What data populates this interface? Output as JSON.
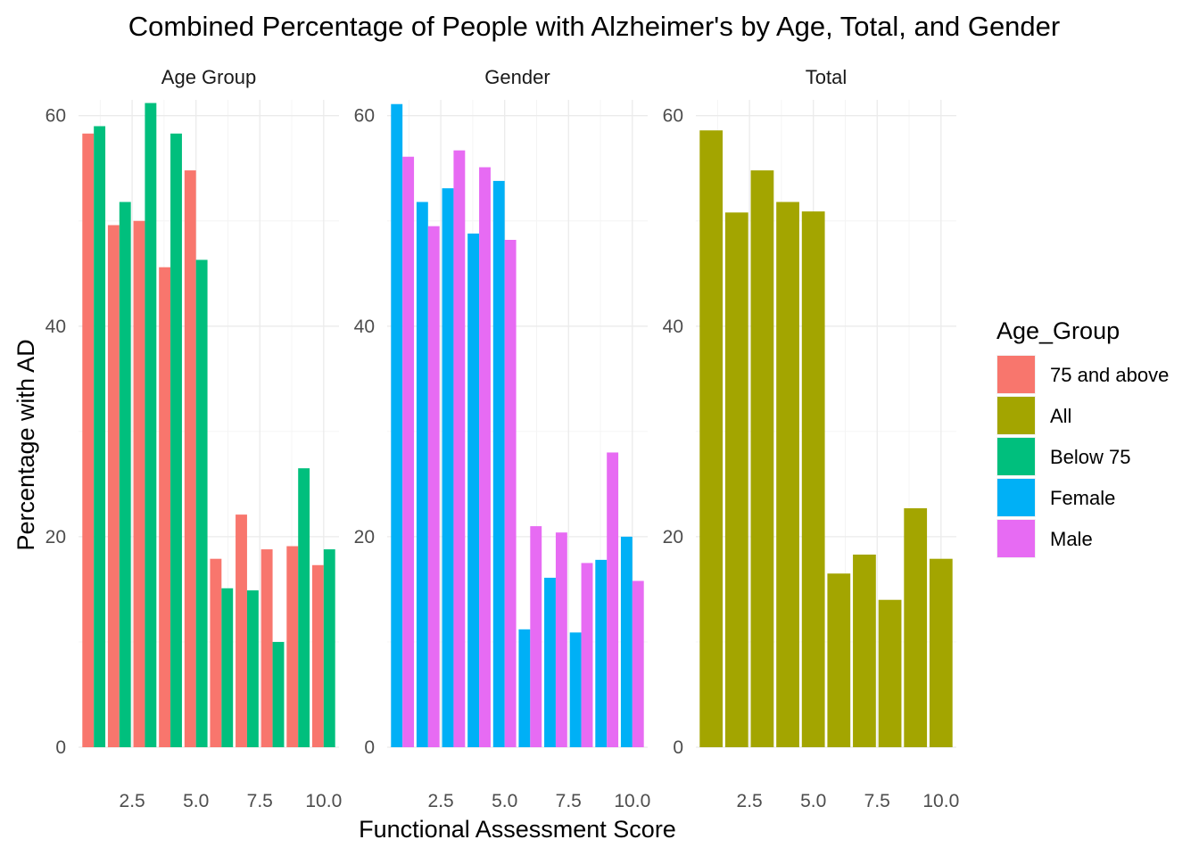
{
  "chart_data": {
    "type": "bar",
    "title": "Combined Percentage of People with Alzheimer's by Age, Total, and Gender",
    "xlabel": "Functional Assessment Score",
    "ylabel": "Percentage with AD",
    "x_ticks": [
      2.5,
      5.0,
      7.5,
      10.0
    ],
    "x_tick_labels": [
      "2.5",
      "5.0",
      "7.5",
      "10.0"
    ],
    "grid": true,
    "legend": {
      "title": "Age_Group",
      "position": "right",
      "entries": [
        {
          "name": "75 and above",
          "color": "#F8766D"
        },
        {
          "name": "All",
          "color": "#A3A500"
        },
        {
          "name": "Below 75",
          "color": "#00BF7D"
        },
        {
          "name": "Female",
          "color": "#00B0F6"
        },
        {
          "name": "Male",
          "color": "#E76BF3"
        }
      ]
    },
    "x": [
      1,
      2,
      3,
      4,
      5,
      6,
      7,
      8,
      9,
      10
    ],
    "panels": [
      {
        "strip": "Age Group",
        "ylim": [
          0,
          61.5
        ],
        "y_ticks": [
          0,
          20,
          40,
          60
        ],
        "y_tick_labels": [
          "0",
          "20",
          "40",
          "60"
        ],
        "series": [
          {
            "name": "75 and above",
            "color": "#F8766D",
            "values": [
              58.3,
              49.6,
              50.0,
              45.6,
              54.8,
              17.9,
              22.1,
              18.8,
              19.1,
              17.3
            ]
          },
          {
            "name": "Below 75",
            "color": "#00BF7D",
            "values": [
              59.0,
              51.8,
              61.2,
              58.3,
              46.3,
              15.1,
              14.9,
              10.0,
              26.5,
              18.8
            ]
          }
        ]
      },
      {
        "strip": "Gender",
        "ylim": [
          0,
          61.5
        ],
        "y_ticks": [
          0,
          20,
          40,
          60
        ],
        "y_tick_labels": [
          "0",
          "20",
          "40",
          "60"
        ],
        "series": [
          {
            "name": "Female",
            "color": "#00B0F6",
            "values": [
              61.1,
              51.8,
              53.1,
              48.8,
              53.8,
              11.2,
              16.1,
              10.9,
              17.8,
              20.0
            ]
          },
          {
            "name": "Male",
            "color": "#E76BF3",
            "values": [
              56.1,
              49.5,
              56.7,
              55.1,
              48.2,
              21.0,
              20.4,
              17.5,
              28.0,
              15.8
            ]
          }
        ]
      },
      {
        "strip": "Total",
        "ylim": [
          0,
          61.5
        ],
        "y_ticks": [
          0,
          20,
          40,
          60
        ],
        "y_tick_labels": [
          "0",
          "20",
          "40",
          "60"
        ],
        "series": [
          {
            "name": "All",
            "color": "#A3A500",
            "values": [
              58.6,
              50.8,
              54.8,
              51.8,
              50.9,
              16.5,
              18.3,
              14.0,
              22.7,
              17.9
            ]
          }
        ]
      }
    ]
  }
}
